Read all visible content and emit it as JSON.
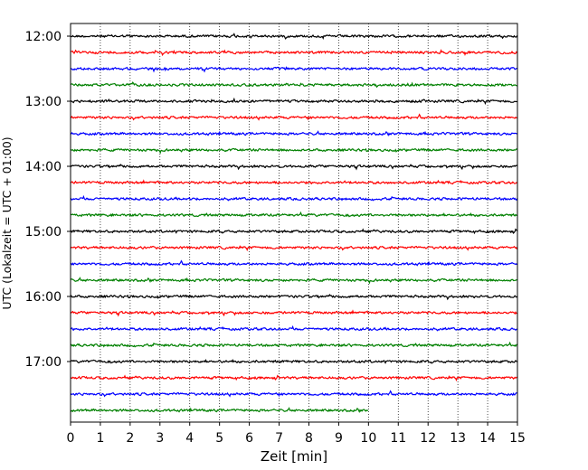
{
  "chart_data": {
    "type": "line",
    "title": "",
    "xlabel": "Zeit  [min]",
    "ylabel": "UTC (Lokalzeit = UTC + 01:00)",
    "xlim": [
      0,
      15
    ],
    "x_ticks": [
      0,
      1,
      2,
      3,
      4,
      5,
      6,
      7,
      8,
      9,
      10,
      11,
      12,
      13,
      14,
      15
    ],
    "y_tick_labels": [
      "12:00",
      "13:00",
      "14:00",
      "15:00",
      "16:00",
      "17:00"
    ],
    "grid": "vertical dotted",
    "legend": "none",
    "trace_colors": [
      "#000000",
      "#ff0000",
      "#0000ff",
      "#008000"
    ],
    "series": [
      {
        "start": "12:00",
        "x_start": 0,
        "x_end": 15,
        "color": "#000000"
      },
      {
        "start": "12:15",
        "x_start": 0,
        "x_end": 15,
        "color": "#ff0000"
      },
      {
        "start": "12:30",
        "x_start": 0,
        "x_end": 15,
        "color": "#0000ff"
      },
      {
        "start": "12:45",
        "x_start": 0,
        "x_end": 15,
        "color": "#008000"
      },
      {
        "start": "13:00",
        "x_start": 0,
        "x_end": 15,
        "color": "#000000"
      },
      {
        "start": "13:15",
        "x_start": 0,
        "x_end": 15,
        "color": "#ff0000"
      },
      {
        "start": "13:30",
        "x_start": 0,
        "x_end": 15,
        "color": "#0000ff"
      },
      {
        "start": "13:45",
        "x_start": 0,
        "x_end": 15,
        "color": "#008000"
      },
      {
        "start": "14:00",
        "x_start": 0,
        "x_end": 15,
        "color": "#000000"
      },
      {
        "start": "14:15",
        "x_start": 0,
        "x_end": 15,
        "color": "#ff0000"
      },
      {
        "start": "14:30",
        "x_start": 0,
        "x_end": 15,
        "color": "#0000ff"
      },
      {
        "start": "14:45",
        "x_start": 0,
        "x_end": 15,
        "color": "#008000"
      },
      {
        "start": "15:00",
        "x_start": 0,
        "x_end": 15,
        "color": "#000000"
      },
      {
        "start": "15:15",
        "x_start": 0,
        "x_end": 15,
        "color": "#ff0000"
      },
      {
        "start": "15:30",
        "x_start": 0,
        "x_end": 15,
        "color": "#0000ff"
      },
      {
        "start": "15:45",
        "x_start": 0,
        "x_end": 15,
        "color": "#008000"
      },
      {
        "start": "16:00",
        "x_start": 0,
        "x_end": 15,
        "color": "#000000"
      },
      {
        "start": "16:15",
        "x_start": 0,
        "x_end": 15,
        "color": "#ff0000"
      },
      {
        "start": "16:30",
        "x_start": 0,
        "x_end": 15,
        "color": "#0000ff"
      },
      {
        "start": "16:45",
        "x_start": 0,
        "x_end": 15,
        "color": "#008000"
      },
      {
        "start": "17:00",
        "x_start": 0,
        "x_end": 15,
        "color": "#000000"
      },
      {
        "start": "17:15",
        "x_start": 0,
        "x_end": 15,
        "color": "#ff0000"
      },
      {
        "start": "17:30",
        "x_start": 0,
        "x_end": 15,
        "color": "#0000ff"
      },
      {
        "start": "17:45",
        "x_start": 0,
        "x_end": 10,
        "color": "#008000"
      }
    ]
  }
}
